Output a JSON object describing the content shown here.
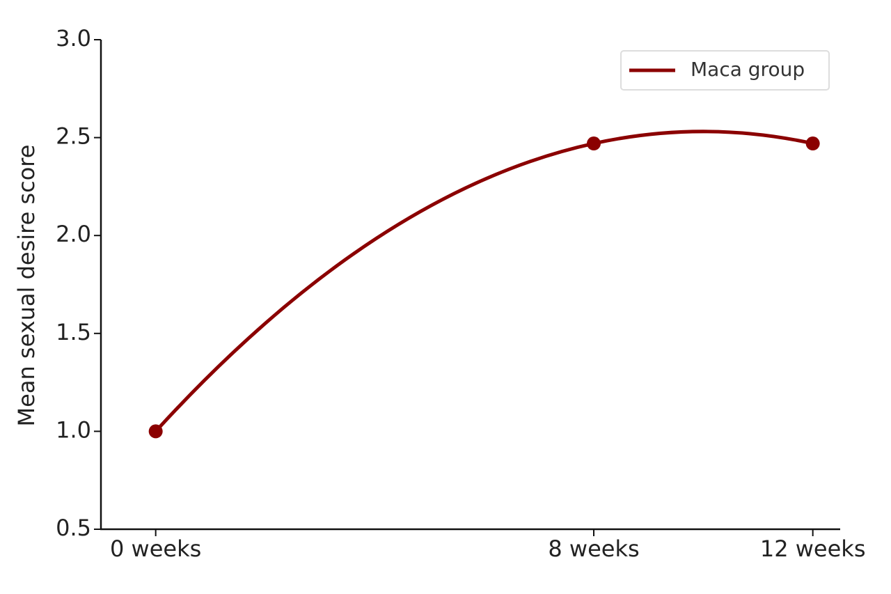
{
  "chart_data": {
    "type": "line",
    "y_label": "Mean sexual desire score",
    "x": [
      0,
      8,
      12
    ],
    "series": [
      {
        "name": "Maca group",
        "color": "#8b0000",
        "values": [
          1.0,
          2.47,
          2.47
        ]
      }
    ],
    "xlim": [
      -1,
      12.5
    ],
    "xticks": [
      {
        "value": 0,
        "label": "0 weeks"
      },
      {
        "value": 8,
        "label": "8 weeks"
      },
      {
        "value": 12,
        "label": "12 weeks"
      }
    ],
    "ylim": [
      0.5,
      3.0
    ],
    "yticks": [
      0.5,
      {
        "value": 1,
        "label": "1.0"
      },
      1.5,
      {
        "value": 2,
        "label": "2.0"
      },
      2.5,
      {
        "value": 3,
        "label": "3.0"
      }
    ],
    "smooth": true,
    "markers": true,
    "legend": "upper right"
  }
}
